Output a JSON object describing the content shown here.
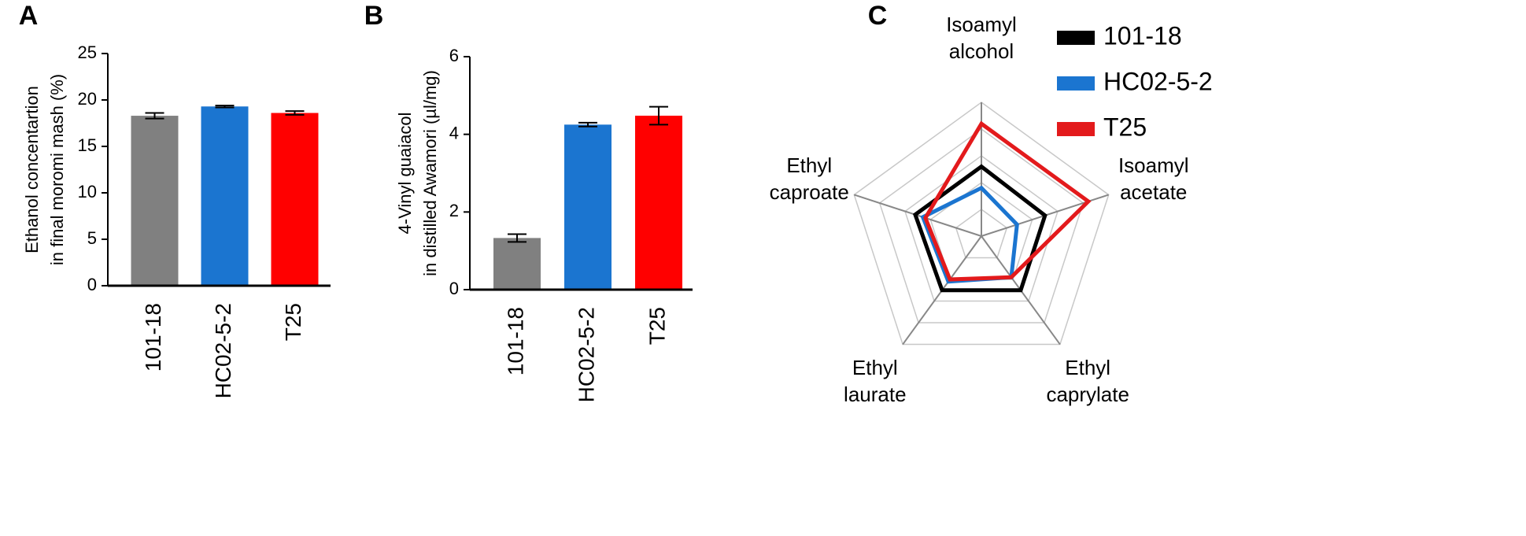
{
  "chart_data": [
    {
      "type": "bar",
      "panel_label": "A",
      "ylabel": [
        "Ethanol concentartion",
        "in final moromi mash (%)"
      ],
      "categories": [
        "101-18",
        "HC02-5-2",
        "T25"
      ],
      "values": [
        18.3,
        19.3,
        18.6
      ],
      "errors": [
        0.3,
        0.1,
        0.2
      ],
      "colors": [
        "#808080",
        "#1b75d0",
        "#ff0000"
      ],
      "ylim": [
        0,
        25
      ],
      "yticks": [
        0,
        5,
        10,
        15,
        20,
        25
      ]
    },
    {
      "type": "bar",
      "panel_label": "B",
      "ylabel": [
        "4-Vinyl guaiacol",
        "in distilled Awamori (µl/mg)"
      ],
      "categories": [
        "101-18",
        "HC02-5-2",
        "T25"
      ],
      "values": [
        1.33,
        4.25,
        4.48
      ],
      "errors": [
        0.1,
        0.05,
        0.23
      ],
      "colors": [
        "#808080",
        "#1b75d0",
        "#ff0000"
      ],
      "ylim": [
        0,
        6
      ],
      "yticks": [
        0,
        2,
        4,
        6
      ]
    },
    {
      "type": "radar",
      "panel_label": "C",
      "axes": [
        [
          "Isoamyl",
          "alcohol"
        ],
        [
          "Isoamyl",
          "acetate"
        ],
        [
          "Ethyl",
          "caprylate"
        ],
        [
          "Ethyl",
          "laurate"
        ],
        [
          "Ethyl",
          "caproate"
        ]
      ],
      "rlim": [
        0,
        5
      ],
      "rticks": [
        1,
        2,
        3,
        4,
        5
      ],
      "series": [
        {
          "name": "101-18",
          "color": "#000000",
          "values": [
            2.6,
            2.5,
            2.5,
            2.5,
            2.6
          ]
        },
        {
          "name": "HC02-5-2",
          "color": "#1b75d0",
          "values": [
            1.8,
            1.4,
            1.9,
            2.1,
            2.3
          ]
        },
        {
          "name": "T25",
          "color": "#e31a1c",
          "values": [
            4.2,
            4.2,
            1.9,
            2.0,
            2.2
          ]
        }
      ]
    }
  ]
}
